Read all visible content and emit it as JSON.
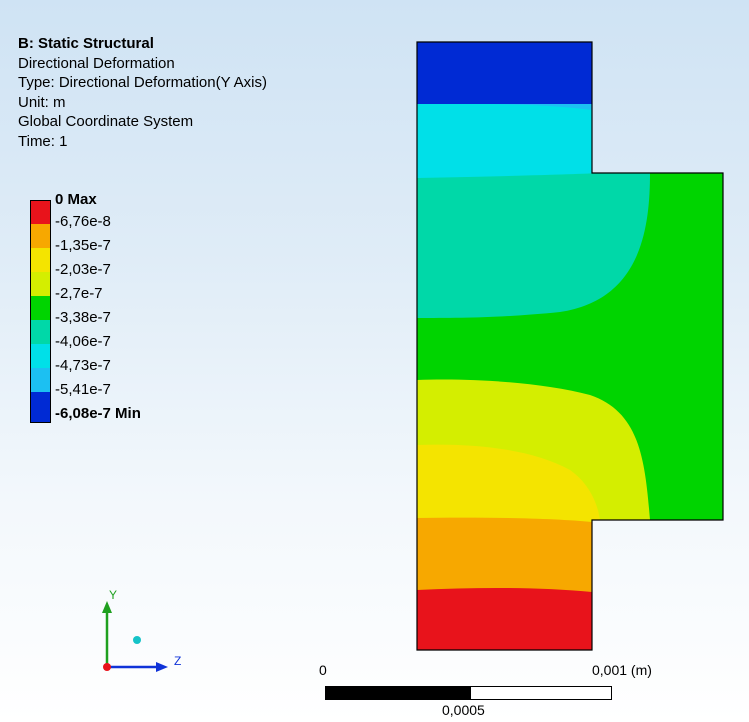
{
  "info": {
    "title": "B: Static Structural",
    "line1": "Directional Deformation",
    "line2": "Type: Directional Deformation(Y Axis)",
    "line3": "Unit: m",
    "line4": "Global Coordinate System",
    "line5": "Time: 1"
  },
  "legend": {
    "labels": [
      "0 Max",
      "-6,76e-8",
      "-1,35e-7",
      "-2,03e-7",
      "-2,7e-7",
      "-3,38e-7",
      "-4,06e-7",
      "-4,73e-7",
      "-5,41e-7",
      "-6,08e-7 Min"
    ],
    "colors": [
      "#e8131b",
      "#f7a800",
      "#f4e400",
      "#d4ee00",
      "#00d400",
      "#00d8a8",
      "#00e0e8",
      "#1cc0f2",
      "#002ad4"
    ]
  },
  "triad": {
    "x_label": "Y",
    "z_label": "Z"
  },
  "scale": {
    "left": "0",
    "right": "0,001 (m)",
    "mid": "0,0005"
  }
}
